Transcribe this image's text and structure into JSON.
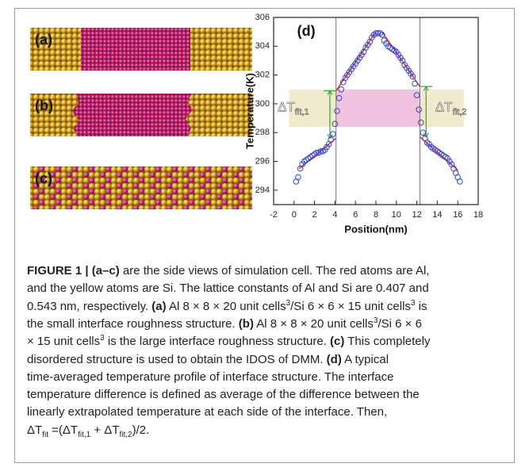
{
  "figure": {
    "panels": [
      {
        "label": "(a)",
        "kind": "sharp"
      },
      {
        "label": "(b)",
        "kind": "rough"
      },
      {
        "label": "(c)",
        "kind": "mixed"
      }
    ],
    "chart_data": {
      "type": "scatter",
      "label": "(d)",
      "x_label": "Position(nm)",
      "y_label": "Temperature(K)",
      "xlim": [
        -2,
        18
      ],
      "ylim": [
        293,
        306
      ],
      "xticks": [
        -2,
        0,
        2,
        4,
        6,
        8,
        10,
        12,
        14,
        16,
        18
      ],
      "yticks": [
        294,
        296,
        298,
        300,
        302,
        304,
        306
      ],
      "series": [
        {
          "color": "#3344cc",
          "x": [
            0.2,
            0.4,
            0.6,
            0.8,
            1.0,
            1.2,
            1.4,
            1.6,
            1.8,
            2.0,
            2.2,
            2.4,
            2.6,
            2.8,
            3.0,
            3.2,
            3.4,
            3.6,
            3.8,
            4.0,
            4.2,
            4.4,
            4.6,
            4.8,
            5.0,
            5.2,
            5.4,
            5.6,
            5.8,
            6.0,
            6.2,
            6.4,
            6.6,
            6.8,
            7.0,
            7.2,
            7.4,
            7.6,
            7.8,
            8.0,
            8.2,
            8.4,
            8.6,
            8.8,
            9.0,
            9.2,
            9.4,
            9.6,
            9.8,
            10.0,
            10.2,
            10.4,
            10.6,
            10.8,
            11.0,
            11.2,
            11.4,
            11.6,
            11.8,
            12.0,
            12.2,
            12.4,
            12.6,
            12.8,
            13.0,
            13.2,
            13.4,
            13.6,
            13.8,
            14.0,
            14.2,
            14.4,
            14.6,
            14.8,
            15.0,
            15.2,
            15.4,
            15.6,
            15.8,
            16.0,
            16.2
          ],
          "values": [
            294.6,
            294.9,
            295.5,
            295.8,
            296.0,
            296.1,
            296.2,
            296.3,
            296.4,
            296.5,
            296.6,
            296.6,
            296.7,
            296.7,
            296.8,
            297.0,
            297.2,
            297.5,
            297.9,
            298.6,
            299.5,
            300.4,
            301.0,
            301.5,
            301.8,
            302.0,
            302.2,
            302.4,
            302.6,
            302.8,
            303.0,
            303.2,
            303.4,
            303.6,
            303.9,
            304.1,
            304.3,
            304.6,
            304.8,
            304.9,
            304.9,
            304.9,
            304.8,
            304.4,
            304.2,
            304.0,
            303.9,
            303.8,
            303.7,
            303.6,
            303.4,
            303.2,
            303.0,
            302.7,
            302.5,
            302.3,
            302.1,
            301.9,
            301.4,
            300.6,
            299.6,
            298.7,
            298.0,
            297.6,
            297.3,
            297.2,
            297.0,
            296.9,
            296.8,
            296.7,
            296.6,
            296.5,
            296.4,
            296.3,
            296.2,
            296.0,
            295.8,
            295.5,
            295.2,
            294.9,
            294.6
          ]
        }
      ],
      "fit_lines": {
        "color": "#e03030",
        "lines": [
          {
            "x": [
              0.5,
              4.1
            ],
            "y": [
              295.5,
              297.6
            ]
          },
          {
            "x": [
              4.1,
              8.0
            ],
            "y": [
              300.9,
              305.0
            ]
          },
          {
            "x": [
              8.6,
              12.3
            ],
            "y": [
              305.0,
              301.2
            ]
          },
          {
            "x": [
              12.3,
              16.0
            ],
            "y": [
              297.7,
              295.4
            ]
          }
        ]
      },
      "vlines": {
        "color": "#777777",
        "x": [
          4.1,
          12.3
        ]
      },
      "bands": [
        {
          "x": [
            4.1,
            12.3
          ],
          "y": [
            298.4,
            301.0
          ],
          "color": "#f0b8dc"
        },
        {
          "x": [
            -0.5,
            4.1
          ],
          "y": [
            298.4,
            301.0
          ],
          "color": "#eee6c4"
        },
        {
          "x": [
            12.3,
            16.6
          ],
          "y": [
            298.4,
            301.0
          ],
          "color": "#eee6c4"
        }
      ],
      "arrows": {
        "color": "#33aa33",
        "items": [
          {
            "x": 3.5,
            "y": [
              297.6,
              300.9
            ]
          },
          {
            "x": 12.9,
            "y": [
              297.7,
              301.2
            ]
          }
        ]
      },
      "annotations": [
        {
          "main": "ΔT",
          "sub": "fit,1"
        },
        {
          "main": "ΔT",
          "sub": "fit,2"
        }
      ]
    }
  },
  "caption": {
    "lines": [
      [
        {
          "text": "FIGURE 1 | (a–c)",
          "style": "bold"
        },
        {
          "text": " are the side views of simulation cell. The red atoms are Al,"
        }
      ],
      [
        {
          "text": "and the yellow atoms are Si. The lattice constants of Al and Si are 0.407 and"
        }
      ],
      [
        {
          "text": "0.543 nm, respectively. "
        },
        {
          "text": "(a)",
          "style": "bold"
        },
        {
          "text": " Al 8 × 8 × 20 unit cells"
        },
        {
          "text": "3",
          "style": "sup"
        },
        {
          "text": "/Si 6 × 6 × 15 unit cells"
        },
        {
          "text": "3",
          "style": "sup"
        },
        {
          "text": " is"
        }
      ],
      [
        {
          "text": "the small interface roughness structure. "
        },
        {
          "text": "(b)",
          "style": "bold"
        },
        {
          "text": " Al 8 × 8 × 20 unit cells"
        },
        {
          "text": "3",
          "style": "sup"
        },
        {
          "text": "/Si 6 × 6"
        }
      ],
      [
        {
          "text": "× 15 unit cells"
        },
        {
          "text": "3",
          "style": "sup"
        },
        {
          "text": " is the large interface roughness structure. "
        },
        {
          "text": "(c)",
          "style": "bold"
        },
        {
          "text": " This completely"
        }
      ],
      [
        {
          "text": "disordered structure is used to obtain the IDOS of DMM. "
        },
        {
          "text": "(d)",
          "style": "bold"
        },
        {
          "text": " A typical"
        }
      ],
      [
        {
          "text": "time-averaged temperature profile of interface structure. The interface"
        }
      ],
      [
        {
          "text": "temperature difference is defined as average of the difference between the"
        }
      ],
      [
        {
          "text": "linearly extrapolated temperature at each side of the interface. Then,"
        }
      ],
      [
        {
          "text": "ΔT"
        },
        {
          "text": "fit",
          "style": "sub"
        },
        {
          "text": " =(ΔT"
        },
        {
          "text": "fit,1",
          "style": "sub"
        },
        {
          "text": " + ΔT"
        },
        {
          "text": "fit,2",
          "style": "sub"
        },
        {
          "text": ")/2."
        }
      ]
    ]
  }
}
